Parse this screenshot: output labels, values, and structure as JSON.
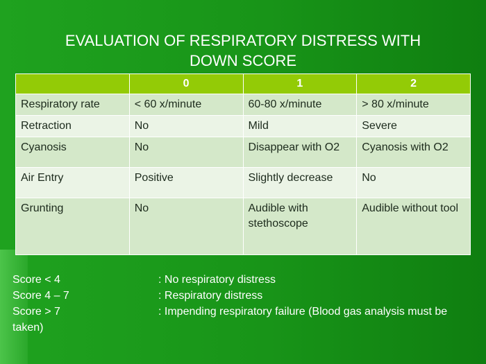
{
  "title": "EVALUATION OF RESPIRATORY DISTRESS WITH DOWN SCORE",
  "table": {
    "columns": [
      "0",
      "1",
      "2"
    ],
    "rows": [
      [
        "Respiratory rate",
        "< 60 x/minute",
        "60-80 x/minute",
        "> 80 x/minute"
      ],
      [
        "Retraction",
        "No",
        "Mild",
        "Severe"
      ],
      [
        "Cyanosis",
        "No",
        "Disappear with O2",
        "Cyanosis with O2"
      ],
      [
        "Air Entry",
        "Positive",
        "Slightly decrease",
        "No"
      ],
      [
        "Grunting",
        "No",
        "Audible with stethoscope",
        "Audible without tool"
      ]
    ]
  },
  "notes": [
    {
      "score": "Score < 4",
      "text": ": No respiratory distress"
    },
    {
      "score": "Score 4 – 7",
      "text": ": Respiratory distress"
    },
    {
      "score": "Score > 7",
      "text": ": Impending respiratory failure (Blood gas analysis must be taken)"
    }
  ]
}
